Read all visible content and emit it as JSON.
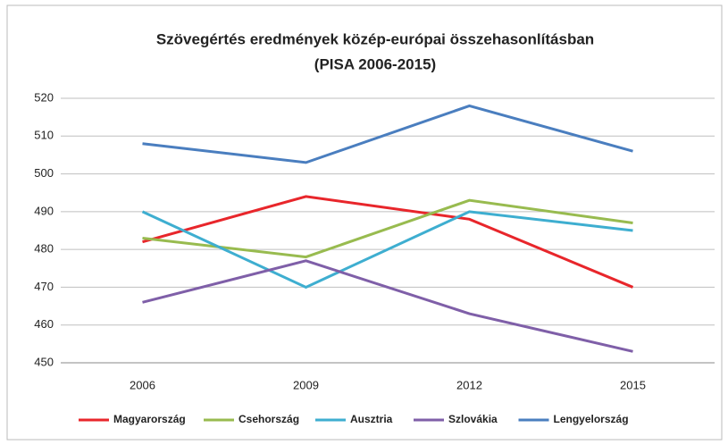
{
  "chart_data": {
    "type": "line",
    "title": "Szövegértés eredmények közép-európai összehasonlításban",
    "subtitle": "(PISA 2006-2015)",
    "categories": [
      "2006",
      "2009",
      "2012",
      "2015"
    ],
    "series": [
      {
        "name": "Magyarország",
        "color": "#e8262b",
        "values": [
          482,
          494,
          488,
          470
        ]
      },
      {
        "name": "Csehország",
        "color": "#98bb4f",
        "values": [
          483,
          478,
          493,
          487
        ]
      },
      {
        "name": "Ausztria",
        "color": "#3eaed0",
        "values": [
          490,
          470,
          490,
          485
        ]
      },
      {
        "name": "Szlovákia",
        "color": "#7f5fa8",
        "values": [
          466,
          477,
          463,
          453
        ]
      },
      {
        "name": "Lengyelország",
        "color": "#4a7ebf",
        "values": [
          508,
          503,
          518,
          506
        ]
      }
    ],
    "ylim": [
      450,
      520
    ],
    "yticks": [
      450,
      460,
      470,
      480,
      490,
      500,
      510,
      520
    ],
    "grid": true,
    "legend": "bottom"
  }
}
